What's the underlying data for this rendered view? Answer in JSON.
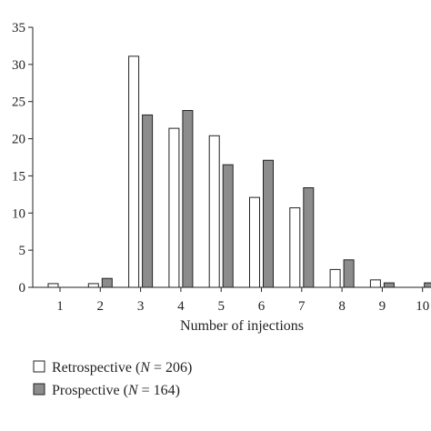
{
  "chart_data": {
    "type": "bar",
    "categories": [
      "1",
      "2",
      "3",
      "4",
      "5",
      "6",
      "7",
      "8",
      "9",
      "10"
    ],
    "series": [
      {
        "name": "Retrospective (N = 206)",
        "name_parts": [
          "Retrospective (",
          "N",
          " = 206)"
        ],
        "color": "#ffffff",
        "values": [
          0.5,
          0.5,
          31.1,
          21.4,
          20.4,
          12.1,
          10.7,
          2.4,
          1.0,
          0
        ]
      },
      {
        "name": "Prospective (N = 164)",
        "name_parts": [
          "Prospective (",
          "N",
          " = 164)"
        ],
        "color": "#8c8c8c",
        "values": [
          0,
          1.2,
          23.2,
          23.8,
          16.5,
          17.1,
          13.4,
          3.7,
          0.6,
          0.6
        ]
      }
    ],
    "xlabel": "Number of injections",
    "ylabel": "",
    "ylim": [
      0,
      35
    ],
    "yticks": [
      "0",
      "5",
      "10",
      "15",
      "20",
      "25",
      "30",
      "35"
    ],
    "grid": false,
    "legend_position": "bottom-left"
  }
}
